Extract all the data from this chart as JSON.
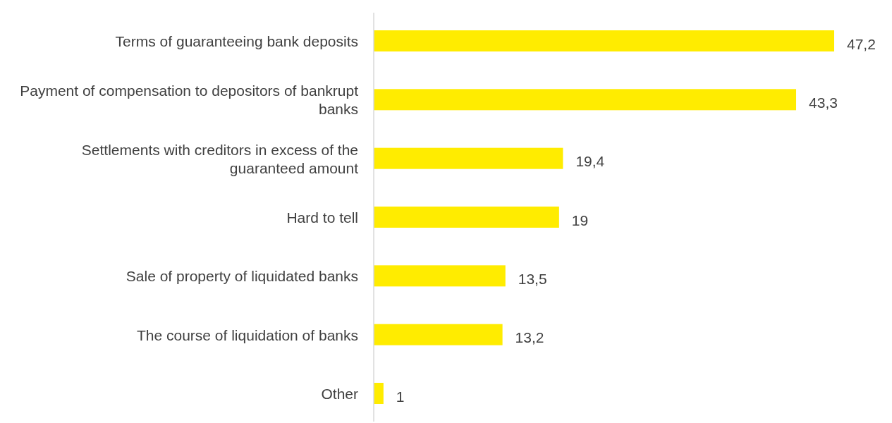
{
  "chart_data": {
    "type": "bar",
    "orientation": "horizontal",
    "categories": [
      "Terms of guaranteeing bank deposits",
      "Payment of compensation to depositors of bankrupt banks",
      "Settlements with creditors in excess of the guaranteed amount",
      "Hard to tell",
      "Sale of property of liquidated banks",
      "The course of liquidation of banks",
      "Other"
    ],
    "values": [
      47.2,
      43.3,
      19.4,
      19,
      13.5,
      13.2,
      1
    ],
    "value_labels": [
      "47,2",
      "43,3",
      "19,4",
      "19",
      "13,5",
      "13,2",
      "1"
    ],
    "color": "#ffec00"
  }
}
